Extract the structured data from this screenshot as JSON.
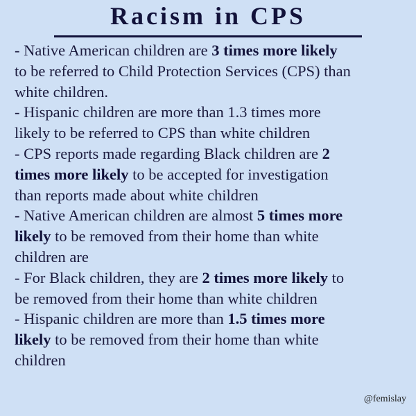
{
  "title": "Racism in CPS",
  "handle": "@femislay",
  "colors": {
    "background": "#cfe0f5",
    "text": "#1b1a3d",
    "title": "#12123a"
  },
  "bullets": [
    {
      "lines": [
        [
          {
            "t": "- Native American children are "
          },
          {
            "t": "3 times more likely",
            "b": true
          }
        ],
        [
          {
            "t": "to be referred to Child Protection Services (CPS) than"
          }
        ],
        [
          {
            "t": "white children."
          }
        ]
      ]
    },
    {
      "lines": [
        [
          {
            "t": "- Hispanic children are more than 1.3 times more"
          }
        ],
        [
          {
            "t": "likely to be referred to CPS than white children"
          }
        ]
      ]
    },
    {
      "lines": [
        [
          {
            "t": "- CPS reports made regarding Black children are "
          },
          {
            "t": "2",
            "b": true
          }
        ],
        [
          {
            "t": "times more likely",
            "b": true
          },
          {
            "t": " to be accepted for investigation"
          }
        ],
        [
          {
            "t": "than reports made about white children"
          }
        ]
      ]
    },
    {
      "lines": [
        [
          {
            "t": "- Native American children are almost "
          },
          {
            "t": "5 times more",
            "b": true
          }
        ],
        [
          {
            "t": "likely",
            "b": true
          },
          {
            "t": " to be removed from their home than white"
          }
        ],
        [
          {
            "t": "children are"
          }
        ]
      ]
    },
    {
      "lines": [
        [
          {
            "t": "- For Black children, they are "
          },
          {
            "t": "2 times more likely",
            "b": true
          },
          {
            "t": " to"
          }
        ],
        [
          {
            "t": "be removed from their home than white children"
          }
        ]
      ]
    },
    {
      "lines": [
        [
          {
            "t": "- Hispanic children are more than "
          },
          {
            "t": "1.5 times more",
            "b": true
          }
        ],
        [
          {
            "t": "likely",
            "b": true
          },
          {
            "t": " to be removed from their home than white"
          }
        ],
        [
          {
            "t": "children"
          }
        ]
      ]
    }
  ]
}
